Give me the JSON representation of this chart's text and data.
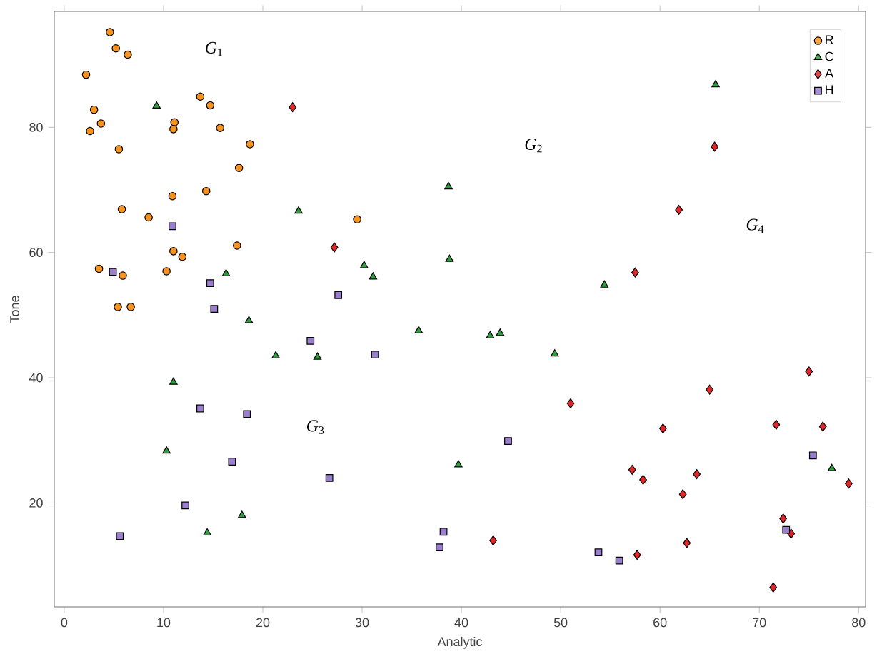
{
  "chart_data": {
    "type": "scatter",
    "xlabel": "Analytic",
    "ylabel": "Tone",
    "xlim": [
      -1,
      80.7
    ],
    "ylim": [
      3.4,
      98.5
    ],
    "xticks": [
      0,
      10,
      20,
      30,
      40,
      50,
      60,
      70,
      80
    ],
    "yticks": [
      20,
      40,
      60,
      80
    ],
    "legend": "top right",
    "series": [
      {
        "name": "R",
        "color": "#f7931e",
        "marker": "circle",
        "x": [
          4.6,
          5.2,
          6.4,
          2.2,
          3.0,
          3.7,
          2.6,
          13.7,
          14.7,
          11.1,
          11.0,
          15.7,
          5.5,
          18.7,
          17.6,
          14.3,
          10.9,
          5.8,
          8.5,
          29.5,
          17.4,
          11.0,
          11.9,
          10.3,
          3.5,
          5.9,
          5.4,
          6.7
        ],
        "values": [
          95.2,
          92.6,
          91.6,
          88.4,
          82.8,
          80.6,
          79.4,
          84.9,
          83.5,
          80.8,
          79.7,
          79.9,
          76.5,
          77.3,
          73.5,
          69.8,
          69.0,
          66.9,
          65.6,
          65.3,
          61.1,
          60.2,
          59.3,
          57.0,
          57.4,
          56.3,
          51.3,
          51.3
        ]
      },
      {
        "name": "C",
        "color": "#2e9e3e",
        "marker": "triangle",
        "x": [
          9.3,
          23.6,
          38.7,
          38.8,
          30.2,
          31.1,
          16.3,
          65.6,
          54.4,
          18.6,
          35.7,
          21.3,
          25.5,
          11.0,
          10.3,
          39.7,
          17.9,
          14.4,
          42.9,
          43.9,
          49.4,
          77.3
        ],
        "values": [
          83.4,
          66.6,
          70.5,
          58.9,
          57.9,
          56.1,
          56.6,
          86.8,
          54.8,
          49.1,
          47.5,
          43.5,
          43.3,
          39.3,
          28.3,
          26.1,
          18.0,
          15.2,
          46.7,
          47.1,
          43.8,
          25.5
        ]
      },
      {
        "name": "A",
        "color": "#e3262a",
        "marker": "diamond",
        "x": [
          23.0,
          27.2,
          65.5,
          61.9,
          57.5,
          51.0,
          65.0,
          75.0,
          60.3,
          71.7,
          76.4,
          57.2,
          58.3,
          63.7,
          62.3,
          79.0,
          43.2,
          62.7,
          57.7,
          72.4,
          73.2,
          71.4
        ],
        "values": [
          83.2,
          60.8,
          76.9,
          66.8,
          56.8,
          35.9,
          38.1,
          41.0,
          31.9,
          32.5,
          32.2,
          25.3,
          23.7,
          24.6,
          21.4,
          23.1,
          14.0,
          13.6,
          11.7,
          17.5,
          15.1,
          6.5
        ]
      },
      {
        "name": "H",
        "color": "#9b7fcf",
        "marker": "square",
        "x": [
          10.9,
          4.9,
          14.7,
          27.6,
          15.1,
          24.8,
          31.3,
          13.7,
          18.4,
          16.9,
          26.7,
          12.2,
          5.6,
          38.2,
          37.8,
          44.7,
          53.8,
          55.9,
          75.4,
          72.7
        ],
        "values": [
          64.2,
          56.9,
          55.1,
          53.2,
          51.0,
          45.9,
          43.7,
          35.1,
          34.2,
          26.6,
          24.0,
          19.6,
          14.7,
          15.4,
          12.9,
          29.9,
          12.1,
          10.8,
          27.6,
          15.7
        ]
      }
    ],
    "annotations": [
      "*G*$_{1}$",
      "*G*$_{2}$",
      "*G*$_{3}$",
      "*G*$_{4}$"
    ]
  }
}
